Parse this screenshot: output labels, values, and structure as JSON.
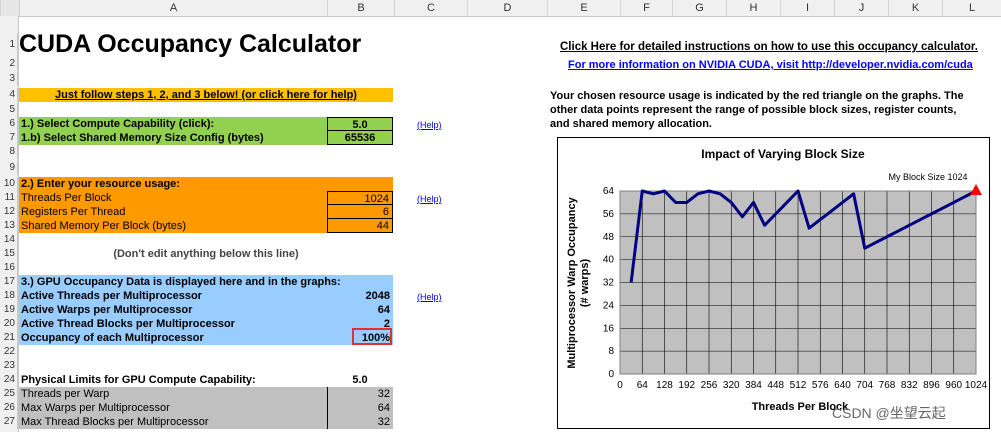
{
  "column_headers": [
    "A",
    "B",
    "C",
    "D",
    "E",
    "F",
    "G",
    "H",
    "I",
    "J",
    "K",
    "L"
  ],
  "row_numbers": [
    "1",
    "2",
    "3",
    "4",
    "5",
    "6",
    "7",
    "8",
    "9",
    "10",
    "11",
    "12",
    "13",
    "14",
    "15",
    "16",
    "17",
    "18",
    "19",
    "20",
    "21",
    "22",
    "23",
    "24",
    "25",
    "26",
    "27"
  ],
  "title": "CUDA Occupancy Calculator",
  "steps_banner": "Just follow steps 1, 2, and 3 below! (or click here for help)",
  "step1": {
    "capability_label": "1.) Select Compute Capability (click):",
    "capability_value": "5.0",
    "shared_mem_label": "1.b) Select Shared Memory Size Config (bytes)",
    "shared_mem_value": "65536",
    "help": "(Help)"
  },
  "step2": {
    "header": "2.) Enter your resource usage:",
    "threads_label": "Threads Per Block",
    "threads_value": "1024",
    "registers_label": "Registers Per Thread",
    "registers_value": "6",
    "shared_label": "Shared Memory Per Block (bytes)",
    "shared_value": "44",
    "help": "(Help)"
  },
  "dont_edit": "(Don't edit anything below this line)",
  "step3": {
    "header": "3.) GPU Occupancy Data is displayed here and in the graphs:",
    "active_threads_label": "Active Threads per Multiprocessor",
    "active_threads_value": "2048",
    "active_warps_label": "Active Warps per Multiprocessor",
    "active_warps_value": "64",
    "active_blocks_label": "Active Thread Blocks per Multiprocessor",
    "active_blocks_value": "2",
    "occupancy_label": "Occupancy of each Multiprocessor",
    "occupancy_value": "100%",
    "help": "(Help)"
  },
  "limits": {
    "header": "Physical Limits for GPU Compute Capability:",
    "header_value": "5.0",
    "rows": [
      {
        "label": "Threads per Warp",
        "value": "32"
      },
      {
        "label": "Max Warps per Multiprocessor",
        "value": "64"
      },
      {
        "label": "Max Thread Blocks per Multiprocessor",
        "value": "32"
      }
    ]
  },
  "links": {
    "instructions": "Click Here for detailed instructions on how to use this occupancy calculator.",
    "nvidia": "For more information on NVIDIA CUDA, visit http://developer.nvidia.com/cuda"
  },
  "info_text": [
    "Your chosen resource usage is indicated by the red triangle on the graphs.  The",
    "other data points represent the range of possible block sizes, register counts,",
    "and shared memory allocation."
  ],
  "watermark": "CSDN @坐望云起",
  "colors": {
    "plot_bg": "#c0c0c0",
    "series": "#000080",
    "marker": "#ff0000",
    "highlight_border": "#ff0000"
  },
  "chart_data": {
    "type": "line",
    "title": "Impact of Varying Block Size",
    "xlabel": "Threads Per Block",
    "ylabel_line1": "Multiprocessor Warp Occupancy",
    "ylabel_line2": "(# warps)",
    "annotation": "My Block Size 1024",
    "xlim": [
      0,
      1024
    ],
    "ylim": [
      0,
      64
    ],
    "x_ticks": [
      0,
      64,
      128,
      192,
      256,
      320,
      384,
      448,
      512,
      576,
      640,
      704,
      768,
      832,
      896,
      960,
      1024
    ],
    "y_ticks": [
      0,
      8,
      16,
      24,
      32,
      40,
      48,
      56,
      64
    ],
    "grid": true,
    "x": [
      32,
      64,
      96,
      128,
      160,
      192,
      224,
      256,
      288,
      320,
      352,
      384,
      416,
      448,
      480,
      512,
      544,
      576,
      608,
      640,
      672,
      704,
      736,
      768,
      800,
      832,
      864,
      896,
      928,
      960,
      992,
      1024
    ],
    "values": [
      32,
      64,
      63,
      64,
      60,
      60,
      63,
      64,
      63,
      60,
      55,
      60,
      52,
      56,
      60,
      64,
      51,
      54,
      57,
      60,
      63,
      44,
      46,
      48,
      50,
      52,
      54,
      56,
      58,
      60,
      62,
      64
    ],
    "marker_x": 1024,
    "marker_y": 64
  }
}
